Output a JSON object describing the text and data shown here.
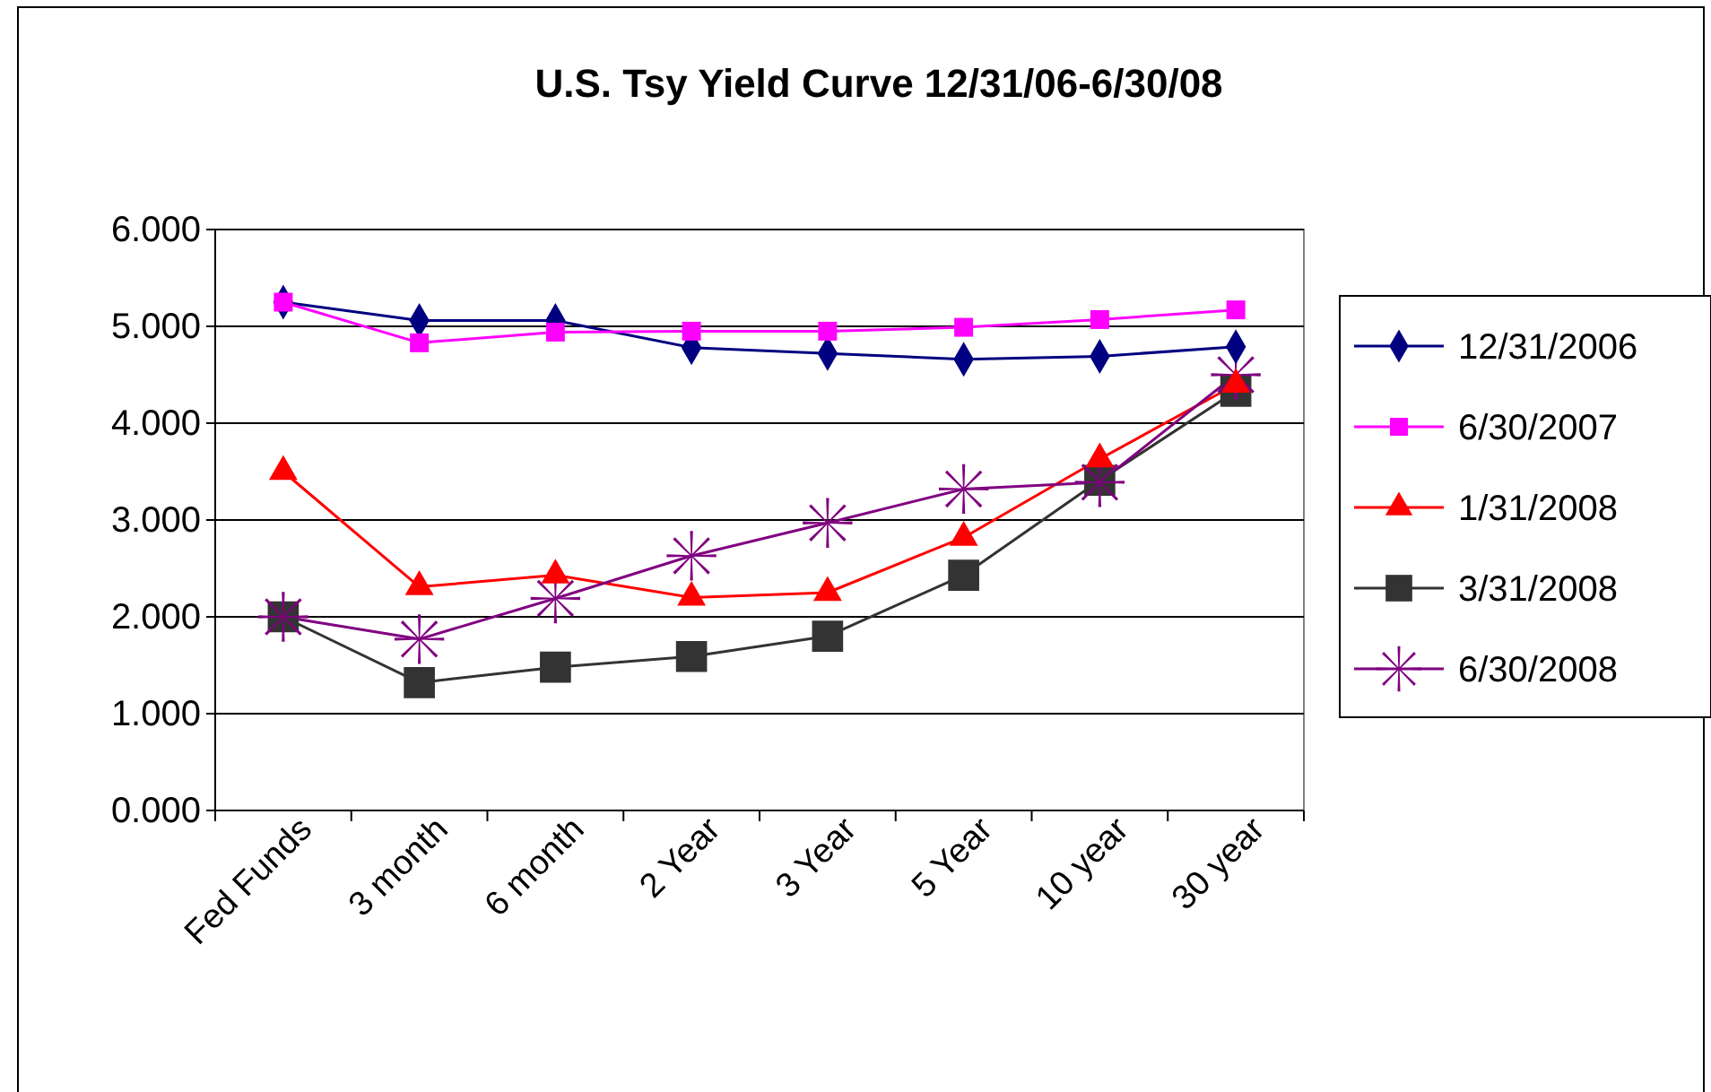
{
  "chart_data": {
    "type": "line",
    "title": "U.S. Tsy Yield Curve 12/31/06-6/30/08",
    "categories": [
      "Fed Funds",
      "3 month",
      "6 month",
      "2 Year",
      "3 Year",
      "5 Year",
      "10 year",
      "30 year"
    ],
    "ylim": [
      0,
      6
    ],
    "yticks": [
      {
        "value": 0,
        "label": "0.000"
      },
      {
        "value": 1,
        "label": "1.000"
      },
      {
        "value": 2,
        "label": "2.000"
      },
      {
        "value": 3,
        "label": "3.000"
      },
      {
        "value": 4,
        "label": "4.000"
      },
      {
        "value": 5,
        "label": "5.000"
      },
      {
        "value": 6,
        "label": "6.000"
      }
    ],
    "grid": "y",
    "legend": "right",
    "line_style": "solid",
    "series": [
      {
        "name": "12/31/2006",
        "color": "#000080",
        "marker": "diamond",
        "values": [
          5.25,
          5.06,
          5.06,
          4.78,
          4.72,
          4.66,
          4.69,
          4.79
        ]
      },
      {
        "name": "6/30/2007",
        "color": "#ff00ff",
        "marker": "square",
        "values": [
          5.25,
          4.83,
          4.94,
          4.95,
          4.95,
          4.99,
          5.07,
          5.17
        ]
      },
      {
        "name": "1/31/2008",
        "color": "#ff0000",
        "marker": "triangle",
        "values": [
          3.5,
          2.31,
          2.43,
          2.2,
          2.25,
          2.82,
          3.63,
          4.4
        ]
      },
      {
        "name": "3/31/2008",
        "color": "#333333",
        "marker": "square",
        "values": [
          2.0,
          1.32,
          1.48,
          1.59,
          1.8,
          2.43,
          3.41,
          4.33
        ]
      },
      {
        "name": "6/30/2008",
        "color": "#800080",
        "marker": "cross",
        "values": [
          2.0,
          1.77,
          2.19,
          2.63,
          2.97,
          3.32,
          3.39,
          4.5
        ]
      }
    ]
  }
}
